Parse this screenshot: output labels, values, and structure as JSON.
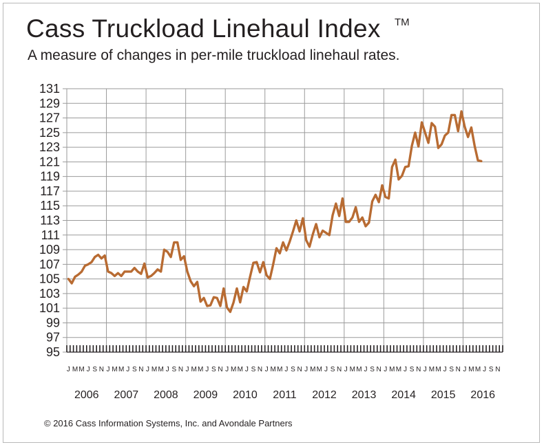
{
  "title": "Cass Truckload Linehaul Index",
  "trademark": "TM",
  "subtitle": "A measure of changes in per-mile truckload linehaul rates.",
  "footer": "© 2016 Cass Information Systems, Inc. and Avondale Partners",
  "colors": {
    "line": "#b86b32",
    "grid": "#9a9a9a",
    "axis": "#231f20"
  },
  "chart_data": {
    "type": "line",
    "title": "Cass Truckload Linehaul Index",
    "subtitle": "A measure of changes in per-mile truckload linehaul rates.",
    "ylim": [
      95,
      131
    ],
    "yticks": [
      95,
      97,
      99,
      101,
      103,
      105,
      107,
      109,
      111,
      113,
      115,
      117,
      119,
      121,
      123,
      125,
      127,
      129,
      131
    ],
    "month_labels": [
      "J",
      "M",
      "M",
      "J",
      "S",
      "N"
    ],
    "years": [
      "2006",
      "2007",
      "2008",
      "2009",
      "2010",
      "2011",
      "2012",
      "2013",
      "2014",
      "2015",
      "2016"
    ],
    "grid": true,
    "series": [
      {
        "start": "2006-01",
        "frequency": "monthly",
        "values": [
          105.0,
          104.4,
          105.3,
          105.6,
          106.0,
          106.8,
          107.0,
          107.3,
          108.0,
          108.3,
          107.8,
          108.2,
          106.0,
          105.8,
          105.4,
          105.8,
          105.4,
          106.0,
          106.0,
          106.0,
          106.5,
          106.0,
          105.7,
          107.1,
          105.2,
          105.4,
          105.8,
          106.3,
          106.0,
          109.0,
          108.7,
          108.0,
          110.0,
          110.0,
          107.6,
          108.1,
          106.0,
          104.7,
          104.0,
          104.6,
          101.9,
          102.4,
          101.3,
          101.4,
          102.5,
          102.4,
          101.3,
          103.7,
          101.1,
          100.5,
          101.8,
          103.7,
          101.8,
          103.9,
          103.3,
          105.3,
          107.2,
          107.3,
          105.9,
          107.3,
          105.5,
          105.0,
          107.0,
          109.2,
          108.5,
          110.0,
          108.9,
          110.1,
          111.5,
          113.0,
          111.5,
          113.3,
          110.3,
          109.4,
          111.1,
          112.5,
          110.7,
          111.6,
          111.3,
          111.0,
          113.7,
          115.3,
          113.6,
          116.0,
          112.8,
          112.8,
          113.4,
          114.8,
          112.8,
          113.4,
          112.2,
          112.7,
          115.6,
          116.5,
          115.5,
          117.8,
          116.2,
          116.0,
          120.3,
          121.3,
          118.6,
          119.1,
          120.3,
          120.4,
          123.2,
          125.0,
          123.1,
          126.4,
          125.0,
          123.6,
          126.3,
          125.8,
          122.9,
          123.4,
          124.6,
          125.0,
          127.4,
          127.4,
          125.2,
          127.9,
          125.8,
          124.4,
          125.7,
          123.2,
          121.2,
          121.1
        ]
      }
    ]
  }
}
